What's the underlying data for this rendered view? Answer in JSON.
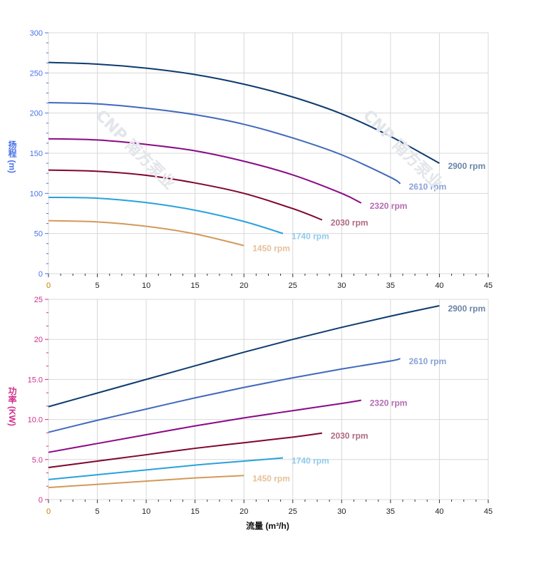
{
  "chart_data": [
    {
      "type": "line",
      "ylabel": "扬程 (m)",
      "xlabel": "",
      "xlim": [
        0,
        45
      ],
      "ylim": [
        0,
        300
      ],
      "xticks": [
        "0",
        "5",
        "10",
        "15",
        "20",
        "25",
        "30",
        "35",
        "40",
        "45"
      ],
      "yticks": [
        "0",
        "50",
        "100",
        "150",
        "200",
        "250",
        "300"
      ],
      "grid": true,
      "axis_color": "#4a72e8",
      "watermark": "CNP 南方泵业",
      "series": [
        {
          "name": "2900 rpm",
          "color": "#0d3c6e",
          "label_color": "#6a86a8",
          "x": [
            0,
            5,
            10,
            15,
            20,
            25,
            30,
            35,
            40
          ],
          "y": [
            263,
            261,
            256,
            248,
            236,
            220,
            199,
            171,
            137.5
          ]
        },
        {
          "name": "2610 rpm",
          "color": "#4169bd",
          "label_color": "#8aa2d6",
          "x": [
            0,
            5,
            10,
            15,
            20,
            25,
            30,
            35,
            36
          ],
          "y": [
            213,
            211.5,
            206,
            198,
            186,
            169,
            148,
            120,
            112
          ]
        },
        {
          "name": "2320 rpm",
          "color": "#8b0a86",
          "label_color": "#b56cb3",
          "x": [
            0,
            5,
            10,
            15,
            20,
            25,
            30,
            32
          ],
          "y": [
            168,
            166.5,
            161,
            153,
            140,
            123,
            100,
            88
          ]
        },
        {
          "name": "2030 rpm",
          "color": "#80052f",
          "label_color": "#b06a80",
          "x": [
            0,
            5,
            10,
            15,
            20,
            25,
            28
          ],
          "y": [
            129,
            127.5,
            122.5,
            113,
            100,
            81,
            67
          ]
        },
        {
          "name": "1740 rpm",
          "color": "#2aa1dd",
          "label_color": "#90cbec",
          "x": [
            0,
            5,
            10,
            15,
            20,
            24
          ],
          "y": [
            95,
            94,
            88.5,
            79,
            65,
            50
          ]
        },
        {
          "name": "1450 rpm",
          "color": "#d39a5a",
          "label_color": "#e6c09a",
          "x": [
            0,
            5,
            10,
            15,
            20
          ],
          "y": [
            66,
            64.5,
            59,
            49.5,
            35
          ]
        }
      ]
    },
    {
      "type": "line",
      "ylabel": "功率 (KW)",
      "xlabel": "流量 (m³/h)",
      "xlim": [
        0,
        45
      ],
      "ylim": [
        0,
        25
      ],
      "xticks": [
        "0",
        "5",
        "10",
        "15",
        "20",
        "25",
        "30",
        "35",
        "40",
        "45"
      ],
      "yticks": [
        "0",
        "5.0",
        "10.0",
        "15.0",
        "20",
        "25"
      ],
      "grid": true,
      "axis_color": "#d0308c",
      "watermark": "CNP 南方泵业",
      "series": [
        {
          "name": "2900 rpm",
          "color": "#0d3c6e",
          "label_color": "#6a86a8",
          "x": [
            0,
            5,
            10,
            15,
            20,
            25,
            30,
            35,
            40
          ],
          "y": [
            11.6,
            13.3,
            15.0,
            16.7,
            18.4,
            20.0,
            21.5,
            22.9,
            24.2
          ]
        },
        {
          "name": "2610 rpm",
          "color": "#4169bd",
          "label_color": "#8aa2d6",
          "x": [
            0,
            5,
            10,
            15,
            20,
            25,
            30,
            35,
            36
          ],
          "y": [
            8.4,
            9.9,
            11.3,
            12.7,
            14.0,
            15.2,
            16.3,
            17.3,
            17.6
          ]
        },
        {
          "name": "2320 rpm",
          "color": "#8b0a86",
          "label_color": "#b56cb3",
          "x": [
            0,
            5,
            10,
            15,
            20,
            25,
            30,
            32
          ],
          "y": [
            5.9,
            7.0,
            8.1,
            9.2,
            10.2,
            11.1,
            12.0,
            12.4
          ]
        },
        {
          "name": "2030 rpm",
          "color": "#80052f",
          "label_color": "#b06a80",
          "x": [
            0,
            5,
            10,
            15,
            20,
            25,
            28
          ],
          "y": [
            4.0,
            4.8,
            5.6,
            6.4,
            7.1,
            7.8,
            8.3
          ]
        },
        {
          "name": "1740 rpm",
          "color": "#2aa1dd",
          "label_color": "#90cbec",
          "x": [
            0,
            5,
            10,
            15,
            20,
            24
          ],
          "y": [
            2.5,
            3.1,
            3.7,
            4.3,
            4.8,
            5.2
          ]
        },
        {
          "name": "1450 rpm",
          "color": "#d39a5a",
          "label_color": "#e6c09a",
          "x": [
            0,
            5,
            10,
            15,
            20
          ],
          "y": [
            1.5,
            1.9,
            2.3,
            2.7,
            3.0
          ]
        }
      ]
    }
  ]
}
